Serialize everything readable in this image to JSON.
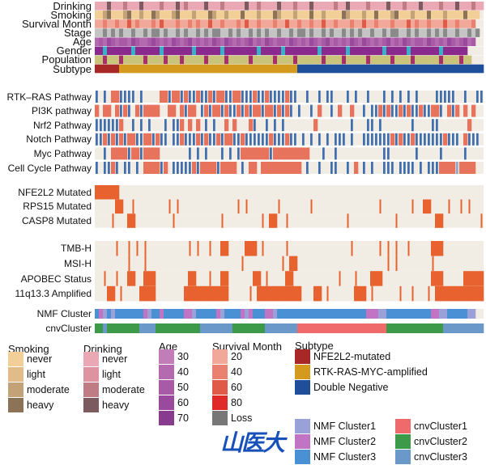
{
  "chart_data": {
    "type": "heatmap",
    "columns": 96,
    "rows": [
      {
        "label": "Drinking",
        "values": "aaadaaacaaadaaaacaaadacaaaadaaacaaaaadaacaaaadaaacaaadaaaaacaadaaaacaaaadaaacaaadaaaacaaadaaacaa",
        "palette": {
          "a": "#eaa7b4",
          "b": "#de94a0",
          "c": "#c07c84",
          "d": "#7b5a60"
        }
      },
      {
        "label": "Smoking",
        "values": "aacdaaacdaacaadcaaacdaaacaaadcaacaaadaaacaaadcaaacaaadaacaaaadcaaacaadaaacdaaacaaadaaacaaaadaaa",
        "palette": {
          "a": "#f3cf98",
          "b": "#e2bc88",
          "c": "#c3a278",
          "d": "#8c7256"
        }
      },
      {
        "label": "Survival Month",
        "values": "aabaabaacabaaabacaaabaababaacaabaaabacaabaaabaacaabaabaacaabaaabaacaabaaabaaacabaabaaacaabaaab",
        "palette": {
          "a": "#f2a898",
          "b": "#ea8070",
          "c": "#e05a48",
          "d": "#e02a2a",
          "e": "#777777"
        }
      },
      {
        "label": "Stage",
        "values": "aabababaabaababbabaababaabababbaababaabababaabaababbabaababaabababaabaababbaababaabababaabaabab",
        "palette": {
          "a": "#c4c4c4",
          "b": "#8a8a8a"
        }
      },
      {
        "label": "Age",
        "values": "bcbdcbccbdcbbcdcbcbdcbcdbcbcbdcbdcbcbcdbcbdcbccbdcbcbdcbcdbcbcbdcbdcbcbcdbcbdcbccbdcbcbdcbcdbc",
        "palette": {
          "a": "#c27cb8",
          "b": "#b46aae",
          "c": "#a85aa6",
          "d": "#9a4a9c",
          "e": "#883c8e"
        }
      },
      {
        "label": "Gender",
        "values": "mmfmmmmmmfmmmmmmfmmmmmmmfmmmmmmfmmmmmmmmfmmmmmfmmmmmmmmfmmmmmmfmmmmmmmmfmmmmmfmmmmmmmfmmmmmm",
        "palette": {
          "m": "#8b2a8e",
          "f": "#3ab0c8"
        }
      },
      {
        "label": "Population",
        "values": "aabaaabaaaaabaaaabaaabaaaaabaaaabaaaaabaaaaabaaaabaaaaaabaaaabaaaaabaaaaabaaaabaaaaaabaaaabaa",
        "palette": {
          "a": "#c9c47a",
          "b": "#a8306a"
        }
      },
      {
        "label": "Subtype",
        "values": "rrrrrrggggggggggggggggggggggggggggggggggggggggggggbbbbbbbbbbbbbbbbbbbbbbbbbbbbbbbbbbbbbbbbbbbbbb",
        "palette": {
          "r": "#a82828",
          "g": "#d49a1e",
          "b": "#1f4f9a"
        }
      },
      {
        "label": "RTK–RAS Pathway",
        "values": "b.b.rrbbbb.b....rrbrrbrbbrbbrbrrbbrrbbbrbbrbbbbrbb..b..b.bb...b.b..b...b.b.b.b.b....bbbbb..b..bb",
        "palette": {
          "r": "#e8735c",
          "b": "#3f6faf",
          "l": "#8fa8cc"
        }
      },
      {
        "label": "PI3K pathway",
        "values": "r.rr.rbrb.rbrrrr..rr.rbrr.brbrrbrbbrbrbrrbrrbrbrb.b..b.r..b.r..r..b.bbrbrbbrbrbbrbbrrb.rbr.r.r",
        "palette": {
          "r": "#e8735c",
          "b": "#3f6faf",
          "l": "#8fa8cc"
        }
      },
      {
        "label": "Nrf2 Pathway",
        "values": "bbbbbbr..b.b.b...b.bbr.r.r.b.b..r.r...rb..b.b.b.......r........b...bb.b.......b....bb.......r...",
        "palette": {
          "r": "#e8735c",
          "b": "#3f6faf",
          "l": "#8fa8cc"
        }
      },
      {
        "label": "Notch Pathway",
        "values": "bbrbrbrbrrbbrrbrbb.bbrbbbrbrbbrbrrbbrbbbbbbrbbbrbb.b.b.b.b.bbb.b..bbbbbbbrbrbbrbbbbbbbrbbb.rbbb",
        "palette": {
          "r": "#e8735c",
          "b": "#3f6faf",
          "l": "#8fa8cc"
        }
      },
      {
        "label": "Myc Pathway",
        "values": "..b.rrrrbrrbrrrr.......b.b.b...b.b.brrrrrrrbrrrrrrrrr...b..b...........bb......b.....b.....b.....b",
        "palette": {
          "r": "#e8735c",
          "b": "#3f6faf",
          "l": "#8fa8cc"
        }
      },
      {
        "label": "Cell Cycle Pathway",
        "values": "b.bbrb.bb.b.rrrrbr.bbbbbrbrrrrbrrrr.b.rr.rrrrrrrrrr.b..b..bb..b.r.b.b..bbb.bbbb.b.bbbrrrrlrrrr",
        "palette": {
          "r": "#e8735c",
          "b": "#3f6faf",
          "l": "#8fa8cc"
        }
      },
      {
        "label": "NFE2L2 Mutated",
        "marks": [
          0,
          1,
          2,
          3,
          4,
          5
        ]
      },
      {
        "label": "RPS15 Mutated",
        "marks": [
          5,
          6,
          9,
          18,
          20,
          35,
          37,
          45,
          53,
          70,
          78,
          81,
          82,
          87,
          90,
          92
        ]
      },
      {
        "label": "CASP8 Mutated",
        "marks": [
          4,
          8,
          9,
          19,
          31,
          41,
          43,
          44,
          47,
          62,
          74,
          84,
          85,
          95
        ]
      },
      {
        "label": "TMB-H",
        "marks": [
          5,
          8,
          10,
          12,
          23,
          25,
          28,
          31,
          32,
          37,
          38,
          39,
          41,
          47,
          63,
          70,
          72,
          74,
          77,
          83,
          84,
          85
        ]
      },
      {
        "label": "MSI-H",
        "marks": [
          8,
          12,
          36,
          46,
          48,
          49,
          72,
          74,
          83
        ]
      },
      {
        "label": "APOBEC Status",
        "marks": [
          2,
          5,
          8,
          9,
          12,
          13,
          14,
          23,
          24,
          28,
          31,
          32,
          39,
          40,
          42,
          47,
          48,
          60,
          64,
          68,
          69,
          70,
          83,
          84,
          85,
          91,
          92,
          93,
          94,
          95
        ]
      },
      {
        "label": "11q13.3 Amplified",
        "marks": [
          3,
          4,
          6,
          11,
          12,
          13,
          14,
          22,
          23,
          24,
          25,
          26,
          27,
          28,
          29,
          30,
          31,
          32,
          38,
          40,
          41,
          42,
          43,
          44,
          45,
          46,
          47,
          48,
          49,
          50,
          54,
          55,
          57,
          64,
          65,
          66,
          68,
          75,
          78,
          82,
          84,
          85,
          86,
          87,
          88,
          89,
          90,
          91,
          92,
          93,
          94,
          95
        ]
      },
      {
        "label": "NMF Cluster",
        "values": "3213133333332133233333221333332133332123332213333333333333333333333222113333333333322113333311",
        "palette": {
          "1": "#9aa0d8",
          "2": "#c274c4",
          "3": "#4a90d4"
        }
      },
      {
        "label": "cnvCluster",
        "values": "2232222222233332222222222233333333222222223333333311111111111111111111112222222222222233333333333",
        "palette": {
          "1": "#ef6b6b",
          "2": "#3c9a48",
          "3": "#6a98c8"
        }
      }
    ],
    "background_color": "#f1ede5",
    "mark_color": "#e8622f"
  },
  "legends": {
    "smoking": {
      "title": "Smoking",
      "items": [
        {
          "label": "never",
          "color": "#f3cf98"
        },
        {
          "label": "light",
          "color": "#e2bc88"
        },
        {
          "label": "moderate",
          "color": "#c3a278"
        },
        {
          "label": "heavy",
          "color": "#8c7256"
        }
      ]
    },
    "drinking": {
      "title": "Drinking",
      "items": [
        {
          "label": "never",
          "color": "#eaa7b4"
        },
        {
          "label": "light",
          "color": "#de94a0"
        },
        {
          "label": "moderate",
          "color": "#c07c84"
        },
        {
          "label": "heavy",
          "color": "#7b5a60"
        }
      ]
    },
    "age": {
      "title": "Age",
      "items": [
        {
          "label": "30",
          "color": "#c27cb8"
        },
        {
          "label": "40",
          "color": "#b46aae"
        },
        {
          "label": "50",
          "color": "#a85aa6"
        },
        {
          "label": "60",
          "color": "#9a4a9c"
        },
        {
          "label": "70",
          "color": "#883c8e"
        }
      ]
    },
    "survival": {
      "title": "Survival Month",
      "items": [
        {
          "label": "20",
          "color": "#f2a898"
        },
        {
          "label": "40",
          "color": "#ea8070"
        },
        {
          "label": "60",
          "color": "#e05a48"
        },
        {
          "label": "80",
          "color": "#e02a2a"
        },
        {
          "label": "Loss",
          "color": "#777777"
        }
      ]
    },
    "subtype": {
      "title": "Subtype",
      "items": [
        {
          "label": "NFE2L2-mutated",
          "color": "#a82828"
        },
        {
          "label": "RTK-RAS-MYC-amplified",
          "color": "#d49a1e"
        },
        {
          "label": "Double Negative",
          "color": "#1f4f9a"
        }
      ]
    },
    "nmf": {
      "title": "",
      "items": [
        {
          "label": "NMF Cluster1",
          "color": "#9aa0d8"
        },
        {
          "label": "NMF Cluster2",
          "color": "#c274c4"
        },
        {
          "label": "NMF Cluster3",
          "color": "#4a90d4"
        }
      ]
    },
    "cnv": {
      "title": "",
      "items": [
        {
          "label": "cnvCluster1",
          "color": "#ef6b6b"
        },
        {
          "label": "cnvCluster2",
          "color": "#3c9a48"
        },
        {
          "label": "cnvCluster3",
          "color": "#6a98c8"
        }
      ]
    }
  },
  "watermark": "山医大"
}
